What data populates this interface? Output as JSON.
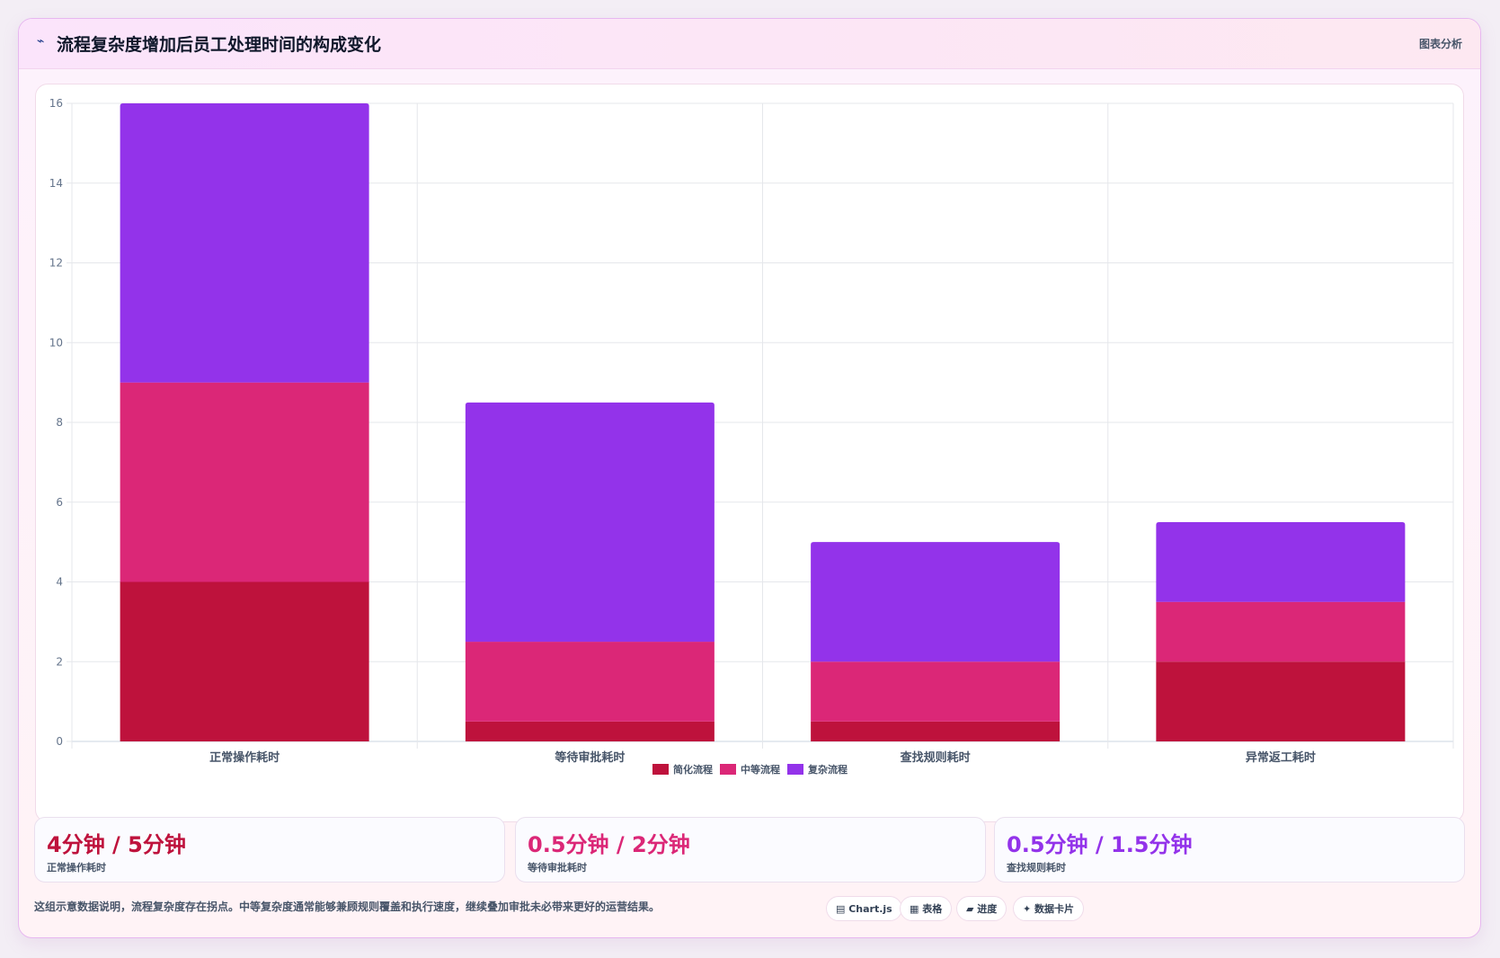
{
  "header": {
    "icon": "chart-line-icon",
    "title": "流程复杂度增加后员工处理时间的构成变化",
    "tag": "图表分析"
  },
  "chart_data": {
    "type": "bar",
    "stacked": true,
    "categories": [
      "正常操作耗时",
      "等待审批耗时",
      "查找规则耗时",
      "异常返工耗时"
    ],
    "series": [
      {
        "name": "简化流程",
        "color": "#be123c",
        "values": [
          4,
          0.5,
          0.5,
          2
        ]
      },
      {
        "name": "中等流程",
        "color": "#db2777",
        "values": [
          5,
          2,
          1.5,
          1.5
        ]
      },
      {
        "name": "复杂流程",
        "color": "#9333ea",
        "values": [
          7,
          6,
          3,
          2
        ]
      }
    ],
    "ylim": [
      0,
      16
    ],
    "yticks": [
      0,
      2,
      4,
      6,
      8,
      10,
      12,
      14,
      16
    ],
    "grid": true,
    "legend_position": "bottom",
    "title": "",
    "xlabel": "",
    "ylabel": ""
  },
  "stats": [
    {
      "value": "4分钟 / 5分钟",
      "label": "正常操作耗时",
      "color": "#be123c"
    },
    {
      "value": "0.5分钟 / 2分钟",
      "label": "等待审批耗时",
      "color": "#db2777"
    },
    {
      "value": "0.5分钟 / 1.5分钟",
      "label": "查找规则耗时",
      "color": "#9333ea"
    }
  ],
  "footnote": "这组示意数据说明，流程复杂度存在拐点。中等复杂度通常能够兼顾规则覆盖和执行速度，继续叠加审批未必带来更好的运营结果。",
  "chips": [
    {
      "icon": "chart-icon",
      "label": "▤ Chart.js"
    },
    {
      "icon": "table-icon",
      "label": "▦ 表格"
    },
    {
      "icon": "progress-icon",
      "label": "▰ 进度"
    },
    {
      "icon": "sparkle-icon",
      "label": "✦ 数据卡片"
    }
  ]
}
